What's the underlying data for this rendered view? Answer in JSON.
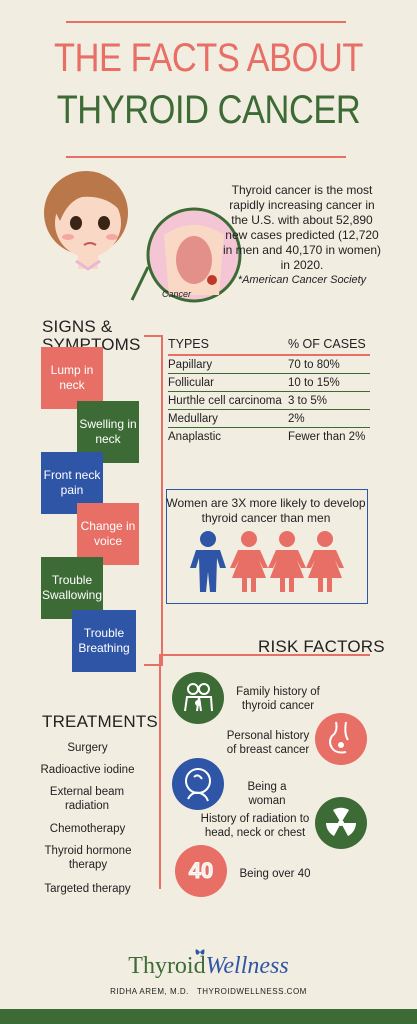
{
  "header": {
    "title_line1": "THE FACTS ABOUT",
    "title_line2": "THYROID CANCER"
  },
  "intro": {
    "text": "Thyroid cancer is the most rapidly increasing cancer in the U.S. with about 52,890 new cases predicted (12,720 in men and 40,170 in women) in 2020.",
    "source": "*American Cancer Society",
    "cancer_label": "Cancer"
  },
  "symptoms": {
    "heading": "SIGNS & SYMPTOMS",
    "items": [
      "Lump in neck",
      "Swelling in neck",
      "Front neck pain",
      "Change in voice",
      "Trouble Swallowing",
      "Trouble Breathing"
    ]
  },
  "types_table": {
    "headers": [
      "TYPES",
      "% OF CASES"
    ],
    "rows": [
      [
        "Papillary",
        "70 to 80%"
      ],
      [
        "Follicular",
        "10 to 15%"
      ],
      [
        "Hurthle cell carcinoma",
        "3 to 5%"
      ],
      [
        "Medullary",
        "2%"
      ],
      [
        "Anaplastic",
        "Fewer than 2%"
      ]
    ]
  },
  "women": {
    "text": "Women are 3X more likely to develop thyroid cancer than men"
  },
  "risk": {
    "heading": "RISK FACTORS",
    "items": [
      "Family history of thyroid cancer",
      "Personal history of breast cancer",
      "Being a woman",
      "History of radiation to head, neck or chest",
      "Being over 40"
    ],
    "age_badge": "40"
  },
  "treatments": {
    "heading": "TREATMENTS",
    "items": [
      "Surgery",
      "Radioactive iodine",
      "External beam radiation",
      "Chemotherapy",
      "Thyroid hormone therapy",
      "Targeted therapy"
    ]
  },
  "footer": {
    "brand_part1": "Thyroid",
    "brand_part2": "Wellness",
    "byline": "RIDHA AREM, M.D.   THYROIDWELLNESS.COM"
  },
  "colors": {
    "background": "#f2ede1",
    "red": "#e76f66",
    "green": "#3d6b35",
    "blue": "#2f56a6"
  }
}
